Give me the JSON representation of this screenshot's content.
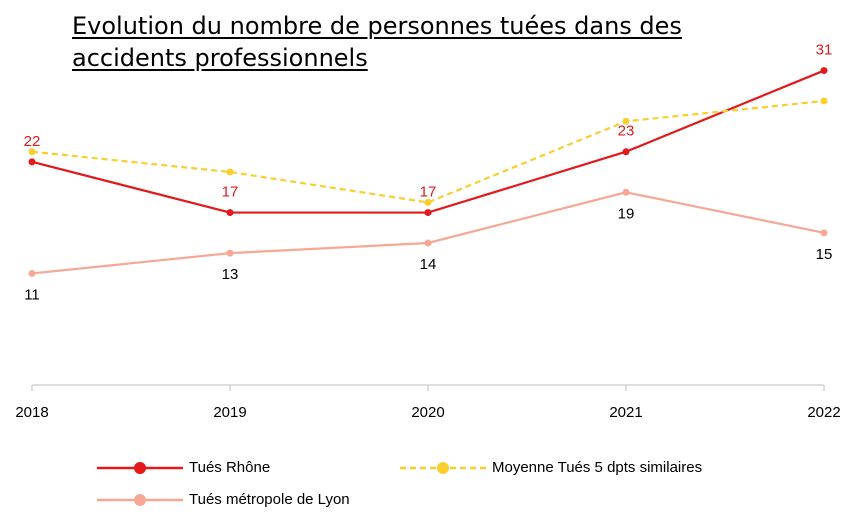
{
  "chart_data": {
    "type": "line",
    "title": "Evolution du nombre de personnes tuées dans des accidents professionnels",
    "categories": [
      "2018",
      "2019",
      "2020",
      "2021",
      "2022"
    ],
    "ylim": [
      0,
      35
    ],
    "series": [
      {
        "name": "Tués Rhône",
        "color": "#e3191c",
        "dashed": false,
        "data_labels": "above",
        "label_color": "#e3191c",
        "values": [
          22,
          17,
          17,
          23,
          31
        ]
      },
      {
        "name": "Moyenne Tués 5 dpts similaires",
        "color": "#f8cf2e",
        "dashed": true,
        "values": [
          23,
          21,
          18,
          26,
          28
        ]
      },
      {
        "name": "Tués métropole de Lyon",
        "color": "#f7a795",
        "dashed": false,
        "data_labels": "below",
        "label_color": "#000000",
        "values": [
          11,
          13,
          14,
          19,
          15
        ]
      }
    ]
  }
}
